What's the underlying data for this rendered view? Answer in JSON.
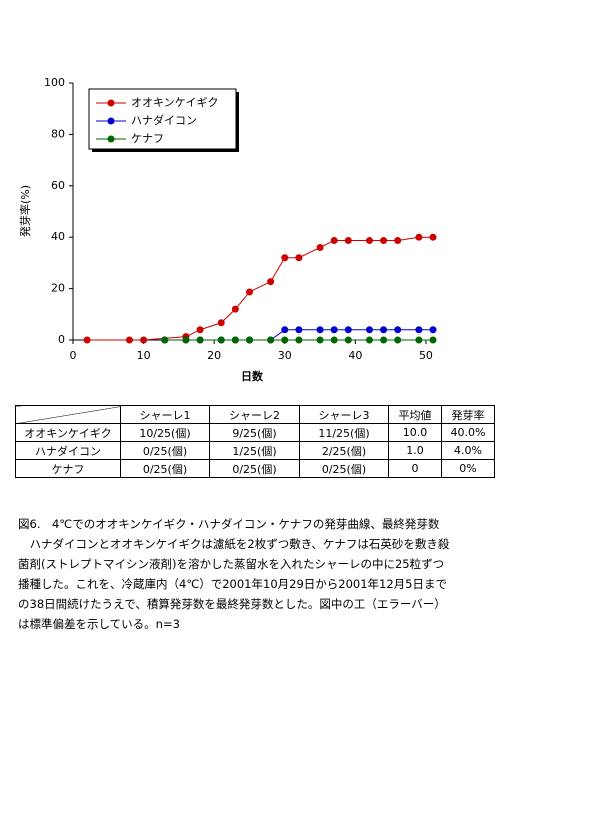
{
  "chart_data": {
    "type": "line",
    "xlabel": "日数",
    "ylabel": "発芽率(%)",
    "xlim": [
      0,
      51
    ],
    "xticks": [
      0,
      10,
      20,
      30,
      40,
      50
    ],
    "ylim": [
      0,
      100
    ],
    "yticks": [
      0,
      20,
      40,
      60,
      80,
      100
    ],
    "series": [
      {
        "name": "オオキンケイギク",
        "color": "#cc0000",
        "x": [
          2,
          8,
          10,
          16,
          18,
          21,
          23,
          25,
          28,
          30,
          32,
          35,
          37,
          39,
          42,
          44,
          46,
          49,
          51
        ],
        "values": [
          0,
          0,
          0,
          1.3,
          4,
          6.7,
          12,
          18.7,
          22.7,
          32,
          32,
          36,
          38.7,
          38.7,
          38.7,
          38.7,
          38.7,
          40,
          40
        ]
      },
      {
        "name": "ハナダイコン",
        "color": "#0000cc",
        "x": [
          13,
          16,
          18,
          21,
          23,
          25,
          28,
          30,
          32,
          35,
          37,
          39,
          42,
          44,
          46,
          49,
          51
        ],
        "values": [
          0,
          0,
          0,
          0,
          0,
          0,
          0,
          4,
          4,
          4,
          4,
          4,
          4,
          4,
          4,
          4,
          4
        ]
      },
      {
        "name": "ケナフ",
        "color": "#006600",
        "x": [
          13,
          16,
          18,
          21,
          23,
          25,
          28,
          30,
          32,
          35,
          37,
          39,
          42,
          44,
          46,
          49,
          51
        ],
        "values": [
          0,
          0,
          0,
          0,
          0,
          0,
          0,
          0,
          0,
          0,
          0,
          0,
          0,
          0,
          0,
          0,
          0
        ]
      }
    ]
  },
  "table": {
    "columns": [
      "シャーレ1",
      "シャーレ2",
      "シャーレ3",
      "平均値",
      "発芽率"
    ],
    "rows": [
      [
        "オオキンケイギク",
        "10/25(個)",
        "9/25(個)",
        "11/25(個)",
        "10.0",
        "40.0%"
      ],
      [
        "ハナダイコン",
        "0/25(個)",
        "1/25(個)",
        "2/25(個)",
        "1.0",
        "4.0%"
      ],
      [
        "ケナフ",
        "0/25(個)",
        "0/25(個)",
        "0/25(個)",
        "0",
        "0%"
      ]
    ]
  },
  "caption": {
    "lines": [
      "図6.　4℃でのオオキンケイギク・ハナダイコン・ケナフの発芽曲線、最終発芽数",
      "　ハナダイコンとオオキンケイギクは濾紙を2枚ずつ敷き、ケナフは石英砂を敷き殺",
      "菌剤(ストレプトマイシン液剤)を溶かした蒸留水を入れたシャーレの中に25粒ずつ",
      "播種した。これを、冷蔵庫内（4℃）で2001年10月29日から2001年12月5日まで",
      "の38日間続けたうえで、積算発芽数を最終発芽数とした。図中の工（エラーバー）",
      "は標準偏差を示している。n=3"
    ]
  }
}
